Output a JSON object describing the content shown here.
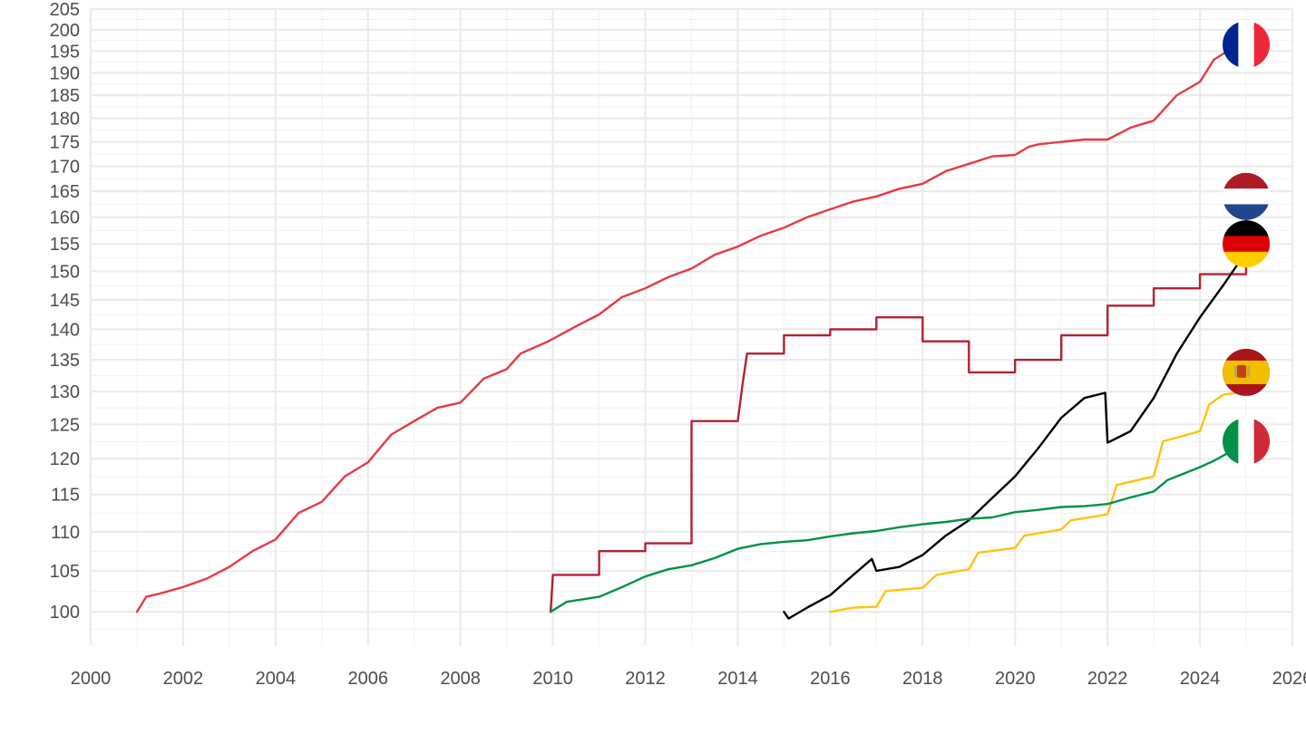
{
  "chart_data": {
    "type": "line",
    "title": "",
    "xlabel": "",
    "ylabel": "",
    "y_scale": "log",
    "xlim": [
      2000,
      2026
    ],
    "ylim": [
      96,
      205
    ],
    "grid": true,
    "legend": "flag icons at line ends",
    "x_ticks": [
      "2000",
      "2002",
      "2004",
      "2006",
      "2008",
      "2010",
      "2012",
      "2014",
      "2016",
      "2018",
      "2020",
      "2022",
      "2024",
      "2026"
    ],
    "y_ticks": [
      "100",
      "105",
      "110",
      "115",
      "120",
      "125",
      "130",
      "135",
      "140",
      "145",
      "150",
      "155",
      "160",
      "165",
      "170",
      "175",
      "180",
      "185",
      "190",
      "195",
      "200",
      "205"
    ],
    "series": [
      {
        "flag": "france-flag-icon",
        "color": "#E63946",
        "points": [
          [
            2001.0,
            100
          ],
          [
            2001.2,
            101.8
          ],
          [
            2001.5,
            102.2
          ],
          [
            2002.0,
            103.0
          ],
          [
            2002.5,
            104.0
          ],
          [
            2003.0,
            105.5
          ],
          [
            2003.5,
            107.5
          ],
          [
            2004.0,
            109.0
          ],
          [
            2004.5,
            112.5
          ],
          [
            2005.0,
            114.0
          ],
          [
            2005.5,
            117.5
          ],
          [
            2006.0,
            119.5
          ],
          [
            2006.5,
            123.5
          ],
          [
            2007.0,
            125.5
          ],
          [
            2007.5,
            127.5
          ],
          [
            2008.0,
            128.3
          ],
          [
            2008.5,
            132.0
          ],
          [
            2009.0,
            133.5
          ],
          [
            2009.3,
            136.0
          ],
          [
            2009.9,
            138.0
          ],
          [
            2010.5,
            140.5
          ],
          [
            2011.0,
            142.5
          ],
          [
            2011.5,
            145.5
          ],
          [
            2012.0,
            147.0
          ],
          [
            2012.5,
            149.0
          ],
          [
            2013.0,
            150.5
          ],
          [
            2013.5,
            153.0
          ],
          [
            2014.0,
            154.5
          ],
          [
            2014.5,
            156.5
          ],
          [
            2015.0,
            158.0
          ],
          [
            2015.5,
            160.0
          ],
          [
            2016.0,
            161.5
          ],
          [
            2016.5,
            163.0
          ],
          [
            2017.0,
            164.0
          ],
          [
            2017.5,
            165.5
          ],
          [
            2018.0,
            166.5
          ],
          [
            2018.5,
            169.0
          ],
          [
            2019.0,
            170.5
          ],
          [
            2019.5,
            172.0
          ],
          [
            2020.0,
            172.3
          ],
          [
            2020.3,
            174.0
          ],
          [
            2020.5,
            174.5
          ],
          [
            2021.0,
            175.0
          ],
          [
            2021.5,
            175.5
          ],
          [
            2022.0,
            175.5
          ],
          [
            2022.5,
            178.0
          ],
          [
            2023.0,
            179.5
          ],
          [
            2023.5,
            185.0
          ],
          [
            2024.0,
            188.0
          ],
          [
            2024.3,
            193.0
          ],
          [
            2024.6,
            195.0
          ],
          [
            2025.0,
            196.0
          ]
        ]
      },
      {
        "flag": "netherlands-flag-icon",
        "color": "#B22234",
        "points": [
          [
            2009.95,
            100
          ],
          [
            2010.0,
            104.5
          ],
          [
            2011.0,
            104.5
          ],
          [
            2011.0,
            107.5
          ],
          [
            2012.0,
            107.5
          ],
          [
            2012.0,
            108.5
          ],
          [
            2013.0,
            108.5
          ],
          [
            2013.0,
            125.5
          ],
          [
            2014.0,
            125.5
          ],
          [
            2014.1,
            131.0
          ],
          [
            2014.2,
            136.0
          ],
          [
            2015.0,
            136.0
          ],
          [
            2015.0,
            139.0
          ],
          [
            2016.0,
            139.0
          ],
          [
            2016.0,
            140.0
          ],
          [
            2017.0,
            140.0
          ],
          [
            2017.0,
            142.0
          ],
          [
            2018.0,
            142.0
          ],
          [
            2018.0,
            138.0
          ],
          [
            2019.0,
            138.0
          ],
          [
            2019.0,
            133.0
          ],
          [
            2020.0,
            133.0
          ],
          [
            2020.0,
            135.0
          ],
          [
            2021.0,
            135.0
          ],
          [
            2021.0,
            139.0
          ],
          [
            2022.0,
            139.0
          ],
          [
            2022.0,
            144.0
          ],
          [
            2023.0,
            144.0
          ],
          [
            2023.0,
            147.0
          ],
          [
            2024.0,
            147.0
          ],
          [
            2024.0,
            149.5
          ],
          [
            2025.0,
            149.5
          ],
          [
            2025.0,
            164.0
          ]
        ]
      },
      {
        "flag": "germany-flag-icon",
        "color": "#000000",
        "points": [
          [
            2015.0,
            100
          ],
          [
            2015.1,
            99.2
          ],
          [
            2015.5,
            100.5
          ],
          [
            2016.0,
            102.0
          ],
          [
            2016.5,
            104.5
          ],
          [
            2016.9,
            106.5
          ],
          [
            2017.0,
            105.0
          ],
          [
            2017.5,
            105.5
          ],
          [
            2018.0,
            107.0
          ],
          [
            2018.5,
            109.5
          ],
          [
            2019.0,
            111.5
          ],
          [
            2019.5,
            114.5
          ],
          [
            2020.0,
            117.5
          ],
          [
            2020.5,
            121.5
          ],
          [
            2021.0,
            126.0
          ],
          [
            2021.5,
            129.0
          ],
          [
            2021.95,
            129.8
          ],
          [
            2022.0,
            122.3
          ],
          [
            2022.5,
            124.0
          ],
          [
            2023.0,
            129.0
          ],
          [
            2023.5,
            136.0
          ],
          [
            2024.0,
            142.0
          ],
          [
            2024.5,
            147.5
          ],
          [
            2025.0,
            153.5
          ]
        ]
      },
      {
        "flag": "spain-flag-icon",
        "color": "#FFC20E",
        "points": [
          [
            2016.0,
            100
          ],
          [
            2016.5,
            100.5
          ],
          [
            2017.0,
            100.6
          ],
          [
            2017.2,
            102.5
          ],
          [
            2018.0,
            102.9
          ],
          [
            2018.3,
            104.5
          ],
          [
            2019.0,
            105.2
          ],
          [
            2019.2,
            107.3
          ],
          [
            2020.0,
            107.9
          ],
          [
            2020.2,
            109.5
          ],
          [
            2021.0,
            110.3
          ],
          [
            2021.2,
            111.5
          ],
          [
            2022.0,
            112.3
          ],
          [
            2022.2,
            116.3
          ],
          [
            2023.0,
            117.5
          ],
          [
            2023.2,
            122.5
          ],
          [
            2024.0,
            124.0
          ],
          [
            2024.2,
            128.0
          ],
          [
            2024.5,
            129.5
          ],
          [
            2025.0,
            130.0
          ]
        ]
      },
      {
        "flag": "italy-flag-icon",
        "color": "#009246",
        "points": [
          [
            2009.95,
            100
          ],
          [
            2010.3,
            101.2
          ],
          [
            2011.0,
            101.8
          ],
          [
            2011.5,
            103.0
          ],
          [
            2012.0,
            104.3
          ],
          [
            2012.5,
            105.2
          ],
          [
            2013.0,
            105.7
          ],
          [
            2013.5,
            106.6
          ],
          [
            2014.0,
            107.8
          ],
          [
            2014.5,
            108.4
          ],
          [
            2015.0,
            108.7
          ],
          [
            2015.5,
            108.9
          ],
          [
            2016.0,
            109.4
          ],
          [
            2016.5,
            109.8
          ],
          [
            2017.0,
            110.1
          ],
          [
            2017.5,
            110.6
          ],
          [
            2018.0,
            111.0
          ],
          [
            2018.5,
            111.3
          ],
          [
            2019.0,
            111.7
          ],
          [
            2019.5,
            111.9
          ],
          [
            2020.0,
            112.6
          ],
          [
            2020.5,
            112.9
          ],
          [
            2021.0,
            113.3
          ],
          [
            2021.5,
            113.4
          ],
          [
            2022.0,
            113.7
          ],
          [
            2022.5,
            114.6
          ],
          [
            2023.0,
            115.4
          ],
          [
            2023.3,
            117.0
          ],
          [
            2024.0,
            118.8
          ],
          [
            2024.3,
            119.7
          ],
          [
            2024.6,
            120.8
          ],
          [
            2025.0,
            120.9
          ]
        ]
      }
    ]
  },
  "flags": [
    {
      "name": "france-flag-icon",
      "value": 196.5,
      "stripes": "vertical",
      "colors": [
        "#002395",
        "#FFFFFF",
        "#ED2939"
      ]
    },
    {
      "name": "netherlands-flag-icon",
      "value": 164.0,
      "stripes": "horizontal",
      "colors": [
        "#AE1C28",
        "#FFFFFF",
        "#21468B"
      ]
    },
    {
      "name": "germany-flag-icon",
      "value": 155.0,
      "stripes": "horizontal",
      "colors": [
        "#000000",
        "#DD0000",
        "#FFCE00"
      ]
    },
    {
      "name": "spain-flag-icon",
      "value": 133.0,
      "stripes": "spain",
      "colors": [
        "#AA151B",
        "#F1BF00",
        "#AA151B"
      ]
    },
    {
      "name": "italy-flag-icon",
      "value": 122.5,
      "stripes": "vertical",
      "colors": [
        "#009246",
        "#FFFFFF",
        "#CE2B37"
      ]
    }
  ]
}
